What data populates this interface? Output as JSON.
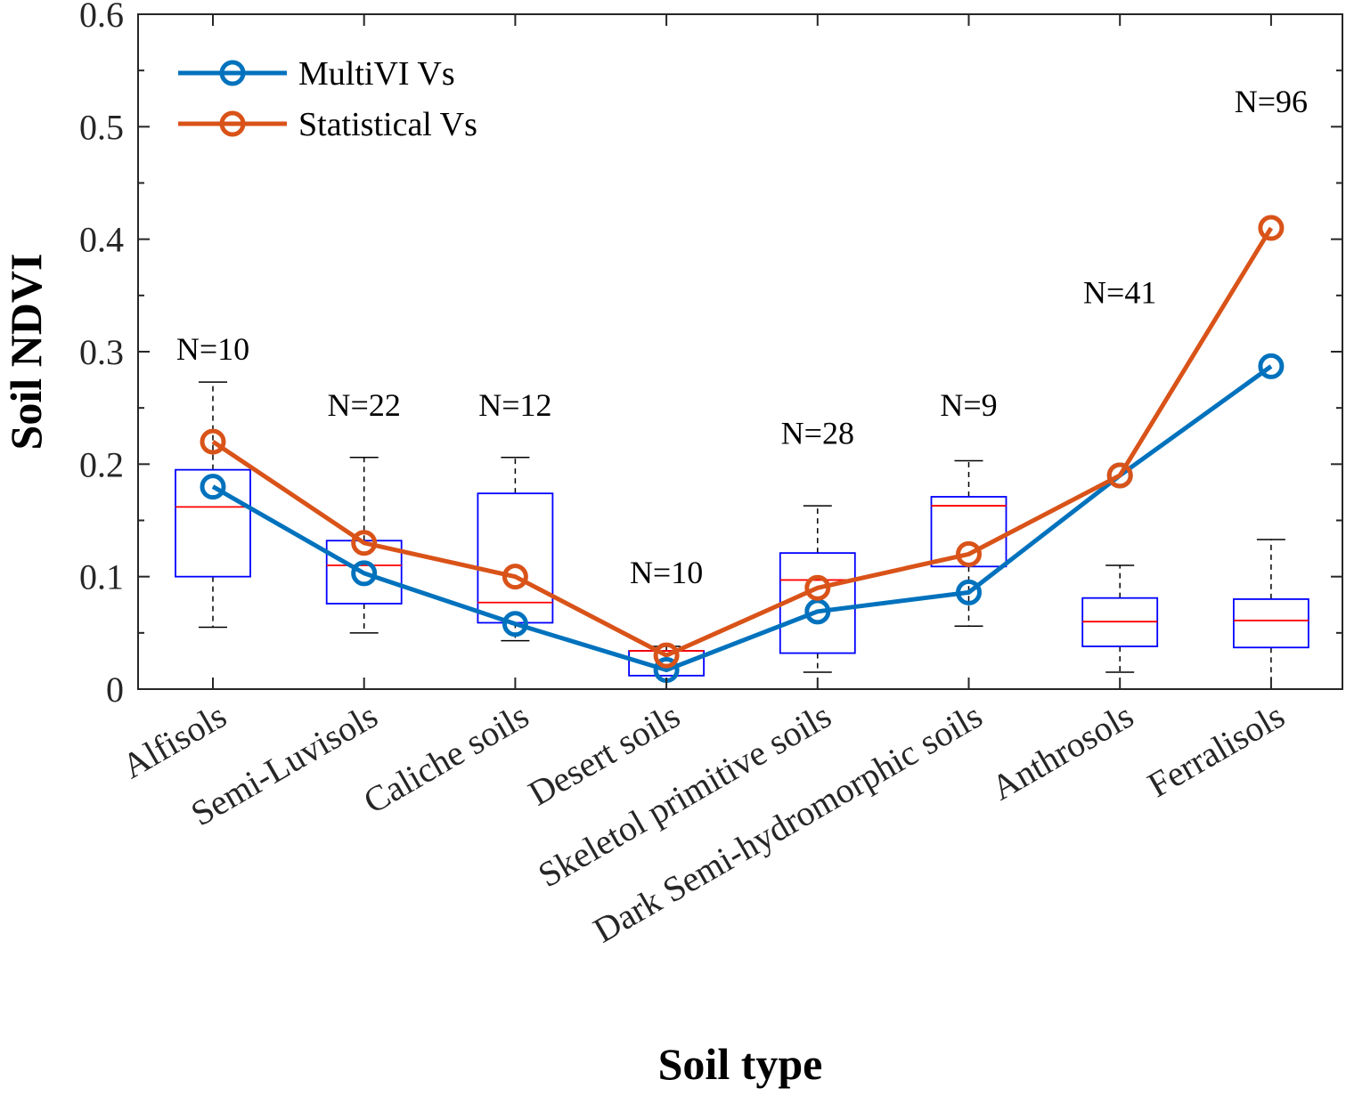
{
  "chart_data": {
    "type": "line",
    "title": "",
    "xlabel": "Soil type",
    "ylabel": "Soil NDVI",
    "ylim": [
      0,
      0.6
    ],
    "yticks": [
      "0",
      "0.1",
      "0.2",
      "0.3",
      "0.4",
      "0.5",
      "0.6"
    ],
    "categories": [
      "Alfisols",
      "Semi-Luvisols",
      "Caliche soils",
      "Desert soils",
      "Skeletol primitive soils",
      "Dark Semi-hydromorphic soils",
      "Anthrosols",
      "Ferralisols"
    ],
    "sample_counts": [
      "N=10",
      "N=22",
      "N=12",
      "N=10",
      "N=28",
      "N=9",
      "N=41",
      "N=96"
    ],
    "series": [
      {
        "name": "MultiVI Vs",
        "color": "#0072BD",
        "values": [
          0.18,
          0.103,
          0.058,
          0.017,
          0.069,
          0.086,
          0.19,
          0.287
        ]
      },
      {
        "name": "Statistical Vs",
        "color": "#D95319",
        "values": [
          0.22,
          0.13,
          0.1,
          0.03,
          0.09,
          0.12,
          0.19,
          0.41
        ]
      }
    ],
    "boxplots": [
      {
        "whisker_low": 0.055,
        "q1": 0.1,
        "median": 0.162,
        "q3": 0.195,
        "whisker_high": 0.273
      },
      {
        "whisker_low": 0.05,
        "q1": 0.076,
        "median": 0.11,
        "q3": 0.132,
        "whisker_high": 0.206
      },
      {
        "whisker_low": 0.043,
        "q1": 0.059,
        "median": 0.077,
        "q3": 0.174,
        "whisker_high": 0.206
      },
      {
        "whisker_low": 0.012,
        "q1": 0.012,
        "median": 0.034,
        "q3": 0.034,
        "whisker_high": 0.038
      },
      {
        "whisker_low": 0.015,
        "q1": 0.032,
        "median": 0.097,
        "q3": 0.121,
        "whisker_high": 0.163
      },
      {
        "whisker_low": 0.056,
        "q1": 0.109,
        "median": 0.163,
        "q3": 0.171,
        "whisker_high": 0.203
      },
      {
        "whisker_low": 0.015,
        "q1": 0.038,
        "median": 0.06,
        "q3": 0.081,
        "whisker_high": 0.11
      },
      {
        "whisker_low": 0.0,
        "q1": 0.037,
        "median": 0.061,
        "q3": 0.08,
        "whisker_high": 0.133
      }
    ],
    "box_color": "#0000FF",
    "median_color": "#FF0000",
    "legend": "top-left",
    "grid": false
  }
}
